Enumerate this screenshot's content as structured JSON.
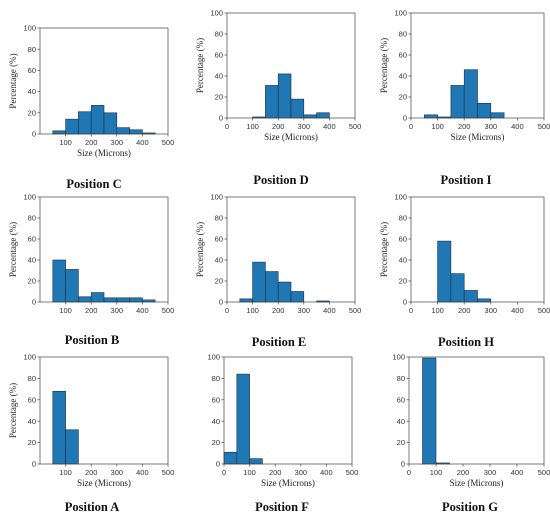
{
  "chart_data": [
    {
      "type": "bar",
      "title": "Position C",
      "xlabel": "Size (Microns)",
      "ylabel": "Percentage (%)",
      "xlim": [
        0,
        500
      ],
      "ylim": [
        0,
        100
      ],
      "xticks": [
        100,
        200,
        300,
        400,
        500
      ],
      "yticks": [
        0,
        20,
        40,
        60,
        80,
        100
      ],
      "bin_width": 50,
      "bins": [
        {
          "x": 50,
          "value": 3
        },
        {
          "x": 100,
          "value": 14
        },
        {
          "x": 150,
          "value": 21
        },
        {
          "x": 200,
          "value": 27
        },
        {
          "x": 250,
          "value": 20
        },
        {
          "x": 300,
          "value": 6
        },
        {
          "x": 350,
          "value": 4
        },
        {
          "x": 400,
          "value": 1
        }
      ],
      "bar_color": "#1f77b4"
    },
    {
      "type": "bar",
      "title": "Position D",
      "xlabel": "Size (Microns)",
      "ylabel": "Percentage (%)",
      "xlim": [
        0,
        500
      ],
      "ylim": [
        0,
        100
      ],
      "xticks": [
        0,
        100,
        200,
        300,
        400,
        500
      ],
      "yticks": [
        0,
        20,
        40,
        60,
        80,
        100
      ],
      "bin_width": 50,
      "bins": [
        {
          "x": 100,
          "value": 1
        },
        {
          "x": 150,
          "value": 31
        },
        {
          "x": 200,
          "value": 42
        },
        {
          "x": 250,
          "value": 18
        },
        {
          "x": 300,
          "value": 3
        },
        {
          "x": 350,
          "value": 5
        }
      ],
      "bar_color": "#1f77b4"
    },
    {
      "type": "bar",
      "title": "Position I",
      "xlabel": "Size (Microns)",
      "ylabel": "Percentage (%)",
      "xlim": [
        0,
        500
      ],
      "ylim": [
        0,
        100
      ],
      "xticks": [
        0,
        100,
        200,
        300,
        400,
        500
      ],
      "yticks": [
        0,
        20,
        40,
        60,
        80,
        100
      ],
      "bin_width": 50,
      "bins": [
        {
          "x": 50,
          "value": 3
        },
        {
          "x": 100,
          "value": 1
        },
        {
          "x": 150,
          "value": 31
        },
        {
          "x": 200,
          "value": 46
        },
        {
          "x": 250,
          "value": 14
        },
        {
          "x": 300,
          "value": 5
        }
      ],
      "bar_color": "#1f77b4"
    },
    {
      "type": "bar",
      "title": "Position B",
      "xlabel": "",
      "ylabel": "Percentage (%)",
      "xlim": [
        0,
        500
      ],
      "ylim": [
        0,
        100
      ],
      "xticks": [
        100,
        200,
        300,
        400,
        500
      ],
      "yticks": [
        0,
        20,
        40,
        60,
        80,
        100
      ],
      "bin_width": 50,
      "bins": [
        {
          "x": 50,
          "value": 40
        },
        {
          "x": 100,
          "value": 31
        },
        {
          "x": 150,
          "value": 5
        },
        {
          "x": 200,
          "value": 9
        },
        {
          "x": 250,
          "value": 4
        },
        {
          "x": 300,
          "value": 4
        },
        {
          "x": 350,
          "value": 4
        },
        {
          "x": 400,
          "value": 2
        }
      ],
      "bar_color": "#1f77b4"
    },
    {
      "type": "bar",
      "title": "Position E",
      "xlabel": "",
      "ylabel": "Percentage (%)",
      "xlim": [
        0,
        500
      ],
      "ylim": [
        0,
        100
      ],
      "xticks": [
        0,
        100,
        200,
        300,
        400,
        500
      ],
      "yticks": [
        0,
        20,
        40,
        60,
        80,
        100
      ],
      "bin_width": 50,
      "bins": [
        {
          "x": 50,
          "value": 3
        },
        {
          "x": 100,
          "value": 38
        },
        {
          "x": 150,
          "value": 29
        },
        {
          "x": 200,
          "value": 19
        },
        {
          "x": 250,
          "value": 10
        },
        {
          "x": 350,
          "value": 1
        }
      ],
      "bar_color": "#1f77b4"
    },
    {
      "type": "bar",
      "title": "Position H",
      "xlabel": "",
      "ylabel": "Percentage (%)",
      "xlim": [
        0,
        500
      ],
      "ylim": [
        0,
        100
      ],
      "xticks": [
        0,
        100,
        200,
        300,
        400,
        500
      ],
      "yticks": [
        0,
        20,
        40,
        60,
        80,
        100
      ],
      "bin_width": 50,
      "bins": [
        {
          "x": 100,
          "value": 58
        },
        {
          "x": 150,
          "value": 27
        },
        {
          "x": 200,
          "value": 11
        },
        {
          "x": 250,
          "value": 3
        }
      ],
      "bar_color": "#1f77b4"
    },
    {
      "type": "bar",
      "title": "Position A",
      "xlabel": "Size (Microns)",
      "ylabel": "Percentage (%)",
      "xlim": [
        0,
        500
      ],
      "ylim": [
        0,
        100
      ],
      "xticks": [
        100,
        200,
        300,
        400,
        500
      ],
      "yticks": [
        0,
        20,
        40,
        60,
        80,
        100
      ],
      "bin_width": 50,
      "bins": [
        {
          "x": 50,
          "value": 68
        },
        {
          "x": 100,
          "value": 32
        }
      ],
      "bar_color": "#1f77b4"
    },
    {
      "type": "bar",
      "title": "Position F",
      "xlabel": "Size (Microns)",
      "ylabel": "",
      "xlim": [
        0,
        500
      ],
      "ylim": [
        0,
        100
      ],
      "xticks": [
        0,
        100,
        200,
        300,
        400,
        500
      ],
      "yticks": [
        0,
        20,
        40,
        60,
        80,
        100
      ],
      "bin_width": 50,
      "bins": [
        {
          "x": 0,
          "value": 11
        },
        {
          "x": 50,
          "value": 84
        },
        {
          "x": 100,
          "value": 5
        }
      ],
      "bar_color": "#1f77b4"
    },
    {
      "type": "bar",
      "title": "Position G",
      "xlabel": "Size (Microns)",
      "ylabel": "",
      "xlim": [
        0,
        500
      ],
      "ylim": [
        0,
        100
      ],
      "xticks": [
        0,
        100,
        200,
        300,
        400,
        500
      ],
      "yticks": [
        0,
        20,
        40,
        60,
        80,
        100
      ],
      "bin_width": 50,
      "bins": [
        {
          "x": 50,
          "value": 99
        },
        {
          "x": 100,
          "value": 1
        }
      ],
      "bar_color": "#1f77b4"
    }
  ]
}
